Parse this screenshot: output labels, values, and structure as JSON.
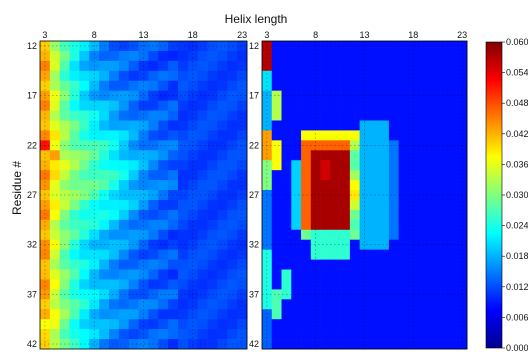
{
  "chart_data": {
    "type": "heatmap",
    "xlabel": "Helix length",
    "ylabel": "Residue #",
    "x_range": [
      3,
      23
    ],
    "y_range": [
      12,
      42
    ],
    "x_ticks": [
      "3",
      "8",
      "13",
      "18",
      "23"
    ],
    "y_ticks": [
      "12",
      "17",
      "22",
      "27",
      "32",
      "37",
      "42"
    ],
    "panels": 2,
    "colorbar": {
      "min": 0.0,
      "max": 0.06,
      "ticks": [
        "0.060",
        "0.054",
        "0.048",
        "0.042",
        "0.036",
        "0.030",
        "0.024",
        "0.018",
        "0.012",
        "0.006",
        "0.000"
      ],
      "colormap": "jet"
    }
  }
}
